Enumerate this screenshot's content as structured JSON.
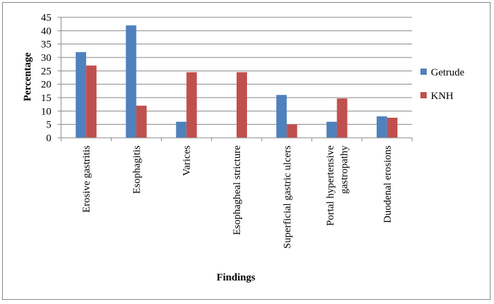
{
  "chart_data": {
    "type": "bar",
    "categories": [
      "Erosive gastritis",
      "Esophagitis",
      "Varices",
      "Esophagheal stricture",
      "Superficial gastric ulcers",
      "Portal hypertensive gastropathy",
      "Duodenal erosions"
    ],
    "category_lines": [
      [
        "Erosive gastritis"
      ],
      [
        "Esophagitis"
      ],
      [
        "Varices"
      ],
      [
        "Esophagheal stricture"
      ],
      [
        "Superficial gastric ulcers"
      ],
      [
        "Portal hypertensive",
        "gastropathy"
      ],
      [
        "Duodenal erosions"
      ]
    ],
    "series": [
      {
        "name": "Getrude",
        "color": "#4F81BD",
        "values": [
          32,
          42,
          6,
          0,
          16,
          6,
          8
        ]
      },
      {
        "name": "KNH",
        "color": "#C0504D",
        "values": [
          27,
          12,
          24.5,
          24.5,
          5,
          14.7,
          7.5
        ]
      }
    ],
    "xlabel": "Findings",
    "ylabel": "Percentage",
    "ylim": [
      0,
      45
    ],
    "yticks": [
      0,
      5,
      10,
      15,
      20,
      25,
      30,
      35,
      40,
      45
    ],
    "grid": true,
    "legend_position": "right"
  }
}
